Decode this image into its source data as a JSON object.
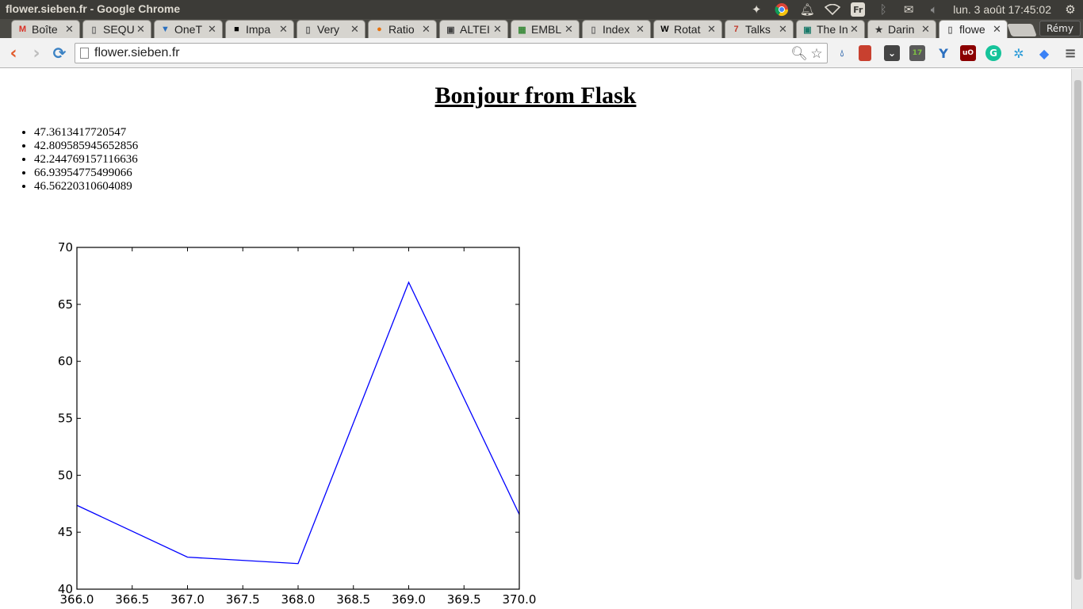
{
  "system": {
    "window_title": "flower.sieben.fr - Google Chrome",
    "clock": "lun.  3 août 17:45:02",
    "keyboard_layout": "Fr"
  },
  "browser": {
    "tabs": [
      {
        "label": "Boîte",
        "icon": "gmail-icon",
        "color": "#d93025"
      },
      {
        "label": "SEQU",
        "icon": "page-icon",
        "color": "#666666"
      },
      {
        "label": "OneT",
        "icon": "onetab-icon",
        "color": "#2a6fbf"
      },
      {
        "label": "Impa",
        "icon": "lse-icon",
        "color": "#000000"
      },
      {
        "label": "Very",
        "icon": "bracket-icon",
        "color": "#555555"
      },
      {
        "label": "Ratio",
        "icon": "flame-icon",
        "color": "#e8710a"
      },
      {
        "label": "ALTEI",
        "icon": "cube-icon",
        "color": "#444444"
      },
      {
        "label": "EMBL",
        "icon": "embl-icon",
        "color": "#3a8a3a"
      },
      {
        "label": "Index",
        "icon": "page-icon",
        "color": "#666666"
      },
      {
        "label": "Rotat",
        "icon": "wikipedia-icon",
        "color": "#000000"
      },
      {
        "label": "Talks",
        "icon": "talks-icon",
        "color": "#c0392b"
      },
      {
        "label": "The In",
        "icon": "screen-icon",
        "color": "#1a7a6a"
      },
      {
        "label": "Darin",
        "icon": "star-icon",
        "color": "#333333"
      },
      {
        "label": "flowe",
        "icon": "page-icon",
        "color": "#666666"
      }
    ],
    "profile_name": "Rémy",
    "url": "flower.sieben.fr"
  },
  "page": {
    "heading": "Bonjour from Flask",
    "values": [
      "47.3613417720547",
      "42.809585945652856",
      "42.244769157116636",
      "66.93954775499066",
      "46.56220310604089"
    ]
  },
  "chart_data": {
    "type": "line",
    "x": [
      366,
      367,
      368,
      369,
      370
    ],
    "series": [
      {
        "values": [
          47.3613417720547,
          42.809585945652856,
          42.244769157116636,
          66.93954775499066,
          46.56220310604089
        ],
        "color": "#0000ff"
      }
    ],
    "xlim": [
      366.0,
      370.0
    ],
    "ylim": [
      40,
      70
    ],
    "xticks": [
      "366.0",
      "366.5",
      "367.0",
      "367.5",
      "368.0",
      "368.5",
      "369.0",
      "369.5",
      "370.0"
    ],
    "yticks": [
      "40",
      "45",
      "50",
      "55",
      "60",
      "65",
      "70"
    ],
    "title": "",
    "xlabel": "",
    "ylabel": "",
    "grid": false
  }
}
